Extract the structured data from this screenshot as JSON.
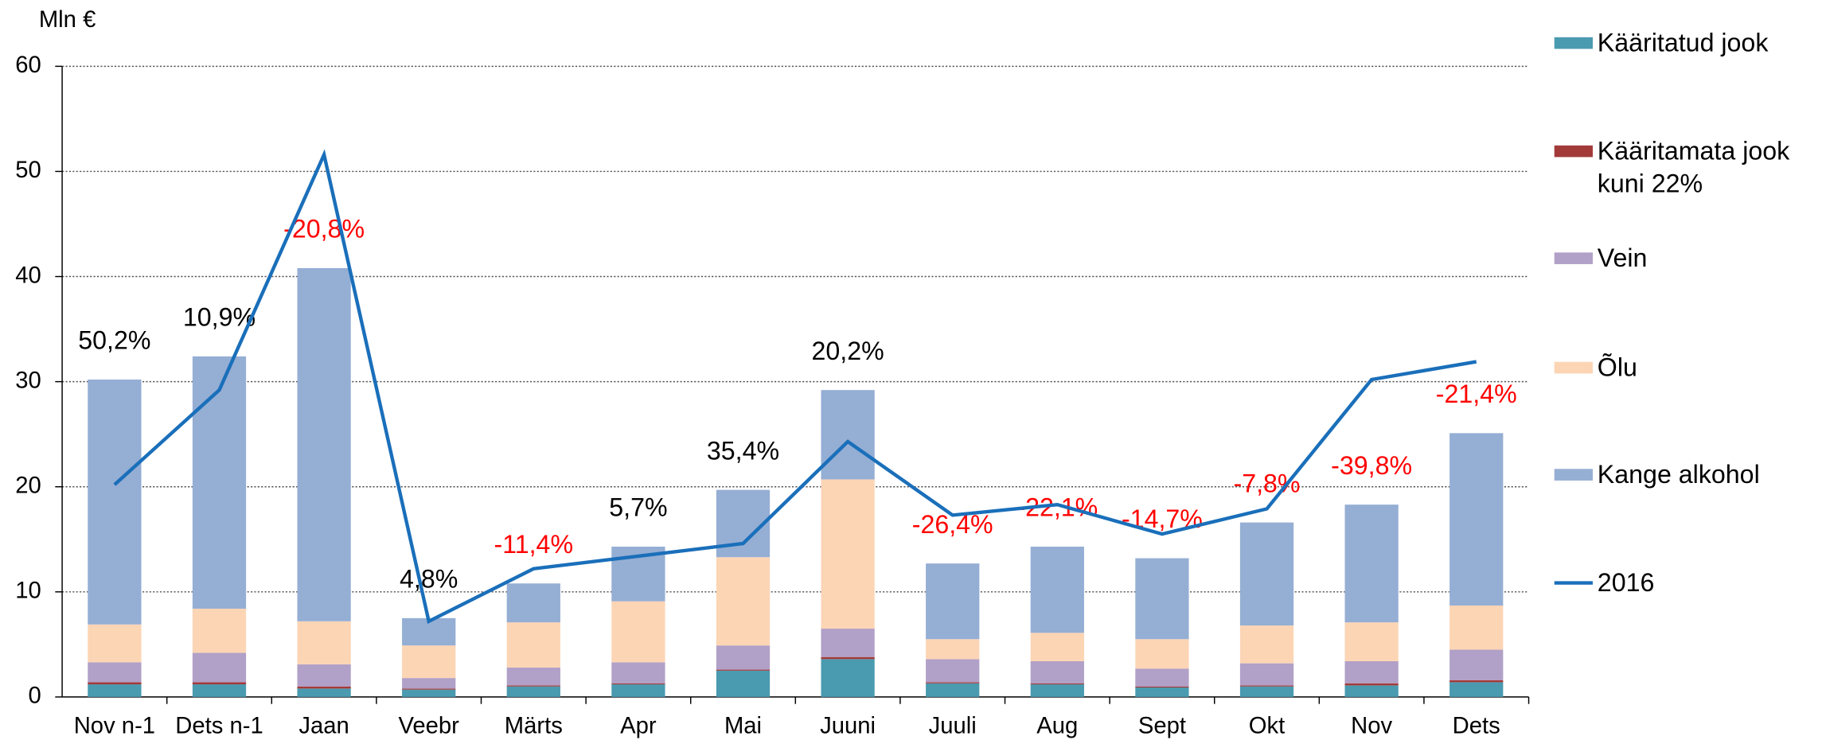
{
  "chart_data": {
    "type": "bar",
    "stacked": true,
    "y_label": "Mln €",
    "categories": [
      "Nov n-1",
      "Dets n-1",
      "Jaan",
      "Veebr",
      "Märts",
      "Apr",
      "Mai",
      "Juuni",
      "Juuli",
      "Aug",
      "Sept",
      "Okt",
      "Nov",
      "Dets"
    ],
    "series": [
      {
        "name": "Kääritatud jook",
        "color": "#4a9ab0",
        "values": [
          1.2,
          1.2,
          0.8,
          0.7,
          1.0,
          1.2,
          2.5,
          3.6,
          1.3,
          1.2,
          0.9,
          1.0,
          1.1,
          1.4
        ]
      },
      {
        "name": "Kääritamata jook kuni 22%",
        "color": "#a33a3a",
        "values": [
          0.2,
          0.2,
          0.2,
          0.1,
          0.1,
          0.1,
          0.1,
          0.2,
          0.1,
          0.1,
          0.1,
          0.1,
          0.2,
          0.2
        ]
      },
      {
        "name": "Vein",
        "color": "#b1a0c7",
        "values": [
          1.9,
          2.8,
          2.1,
          1.0,
          1.7,
          2.0,
          2.3,
          2.7,
          2.2,
          2.1,
          1.7,
          2.1,
          2.1,
          2.9
        ]
      },
      {
        "name": "Õlu",
        "color": "#fcd5b5",
        "values": [
          3.6,
          4.2,
          4.1,
          3.1,
          4.3,
          5.8,
          8.4,
          14.2,
          1.9,
          2.7,
          2.8,
          3.6,
          3.7,
          4.2
        ]
      },
      {
        "name": "Kange alkohol",
        "color": "#95aed4",
        "values": [
          23.3,
          24.0,
          33.6,
          2.6,
          3.7,
          5.2,
          6.4,
          8.5,
          7.2,
          8.2,
          7.7,
          9.8,
          11.2,
          16.4
        ]
      }
    ],
    "line": {
      "name": "2016",
      "color": "#1a6fba",
      "values": [
        20.2,
        29.2,
        51.6,
        7.2,
        12.2,
        13.4,
        14.6,
        24.3,
        17.3,
        18.3,
        15.5,
        17.9,
        30.2,
        31.9
      ]
    },
    "changes": {
      "values": [
        50.2,
        10.9,
        -20.8,
        4.8,
        -11.4,
        5.7,
        35.4,
        20.2,
        -26.4,
        -22.1,
        -14.7,
        -7.8,
        -39.8,
        -21.4
      ],
      "value_labels": [
        "50,2%",
        "10,9%",
        "-20,8%",
        "4,8%",
        "-11,4%",
        "5,7%",
        "35,4%",
        "20,2%",
        "-26,4%",
        "-22,1%",
        "-14,7%",
        "-7,8%",
        "-39,8%",
        "-21,4%"
      ]
    },
    "ylim": [
      0,
      60
    ],
    "yticks": [
      0,
      10,
      20,
      30,
      40,
      50,
      60
    ],
    "grid": true
  }
}
